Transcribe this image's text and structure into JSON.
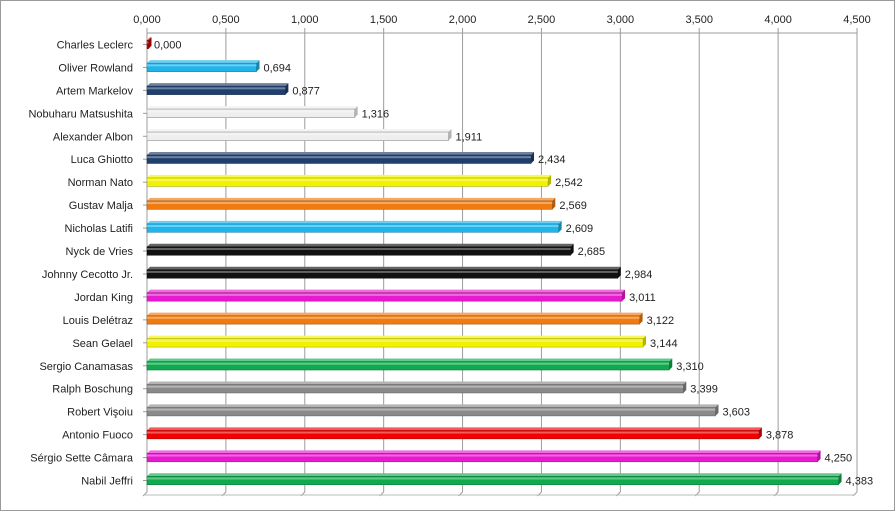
{
  "chart_data": {
    "type": "bar",
    "orientation": "horizontal",
    "title": "",
    "xlabel": "",
    "ylabel": "",
    "xlim": [
      0,
      4.5
    ],
    "tick_step": 0.5,
    "tick_labels": [
      "0,000",
      "0,500",
      "1,000",
      "1,500",
      "2,000",
      "2,500",
      "3,000",
      "3,500",
      "4,000",
      "4,500"
    ],
    "grid": "vertical",
    "axis_position": "top",
    "legend": "none",
    "categories": [
      "Charles Leclerc",
      "Oliver Rowland",
      "Artem Markelov",
      "Nobuharu Matsushita",
      "Alexander Albon",
      "Luca Ghiotto",
      "Norman Nato",
      "Gustav Malja",
      "Nicholas Latifi",
      "Nyck de Vries",
      "Johnny Cecotto Jr.",
      "Jordan King",
      "Louis Delétraz",
      "Sean Gelael",
      "Sergio Canamasas",
      "Ralph Boschung",
      "Robert Vişoiu",
      "Antonio Fuoco",
      "Sérgio Sette Câmara",
      "Nabil Jeffri"
    ],
    "values": [
      0.0,
      0.694,
      0.877,
      1.316,
      1.911,
      2.434,
      2.542,
      2.569,
      2.609,
      2.685,
      2.984,
      3.011,
      3.122,
      3.144,
      3.31,
      3.399,
      3.603,
      3.878,
      4.25,
      4.383
    ],
    "value_labels": [
      "0,000",
      "0,694",
      "0,877",
      "1,316",
      "1,911",
      "2,434",
      "2,542",
      "2,569",
      "2,609",
      "2,685",
      "2,984",
      "3,011",
      "3,122",
      "3,144",
      "3,310",
      "3,399",
      "3,603",
      "3,878",
      "4,250",
      "4,383"
    ],
    "bar_colors": [
      "#cc0000",
      "#1fb4ea",
      "#1f3f6e",
      "#eeeeee",
      "#eeeeee",
      "#1f3f6e",
      "#f2f200",
      "#ee7a10",
      "#1fb4ea",
      "#111111",
      "#111111",
      "#e81ad0",
      "#ee7a10",
      "#f2f200",
      "#10aa4e",
      "#8a8a8a",
      "#8a8a8a",
      "#f00000",
      "#e81ad0",
      "#10aa4e"
    ]
  }
}
